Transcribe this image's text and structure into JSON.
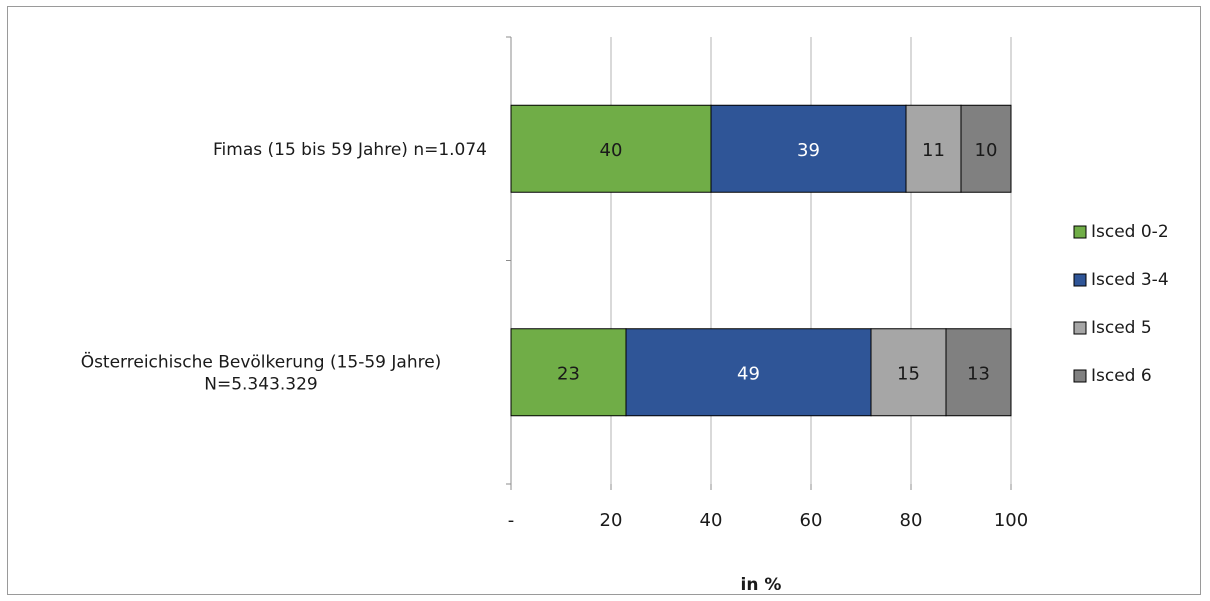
{
  "chart_data": {
    "type": "bar",
    "orientation": "horizontal",
    "stacked": true,
    "categories": [
      [
        "Fimas (15 bis 59 Jahre) n=1.074"
      ],
      [
        "Österreichische Bevölkerung (15-59 Jahre)",
        "N=5.343.329"
      ]
    ],
    "series": [
      {
        "name": "Isced 0-2",
        "values": [
          40,
          23
        ],
        "color": "#70ad47",
        "label_color": "#1a1a1a"
      },
      {
        "name": "Isced 3-4",
        "values": [
          39,
          49
        ],
        "color": "#2f5597",
        "label_color": "#ffffff"
      },
      {
        "name": "Isced 5",
        "values": [
          11,
          15
        ],
        "color": "#a6a6a6",
        "label_color": "#1a1a1a"
      },
      {
        "name": "Isced 6",
        "values": [
          10,
          13
        ],
        "color": "#808080",
        "label_color": "#1a1a1a"
      }
    ],
    "xlabel": "in %",
    "ylabel": "",
    "xlim": [
      0,
      100
    ],
    "xticks": [
      0,
      20,
      40,
      60,
      80,
      100
    ],
    "xtick_labels": [
      "-",
      "20",
      "40",
      "60",
      "80",
      "100"
    ],
    "grid": "vertical",
    "legend_position": "right"
  }
}
